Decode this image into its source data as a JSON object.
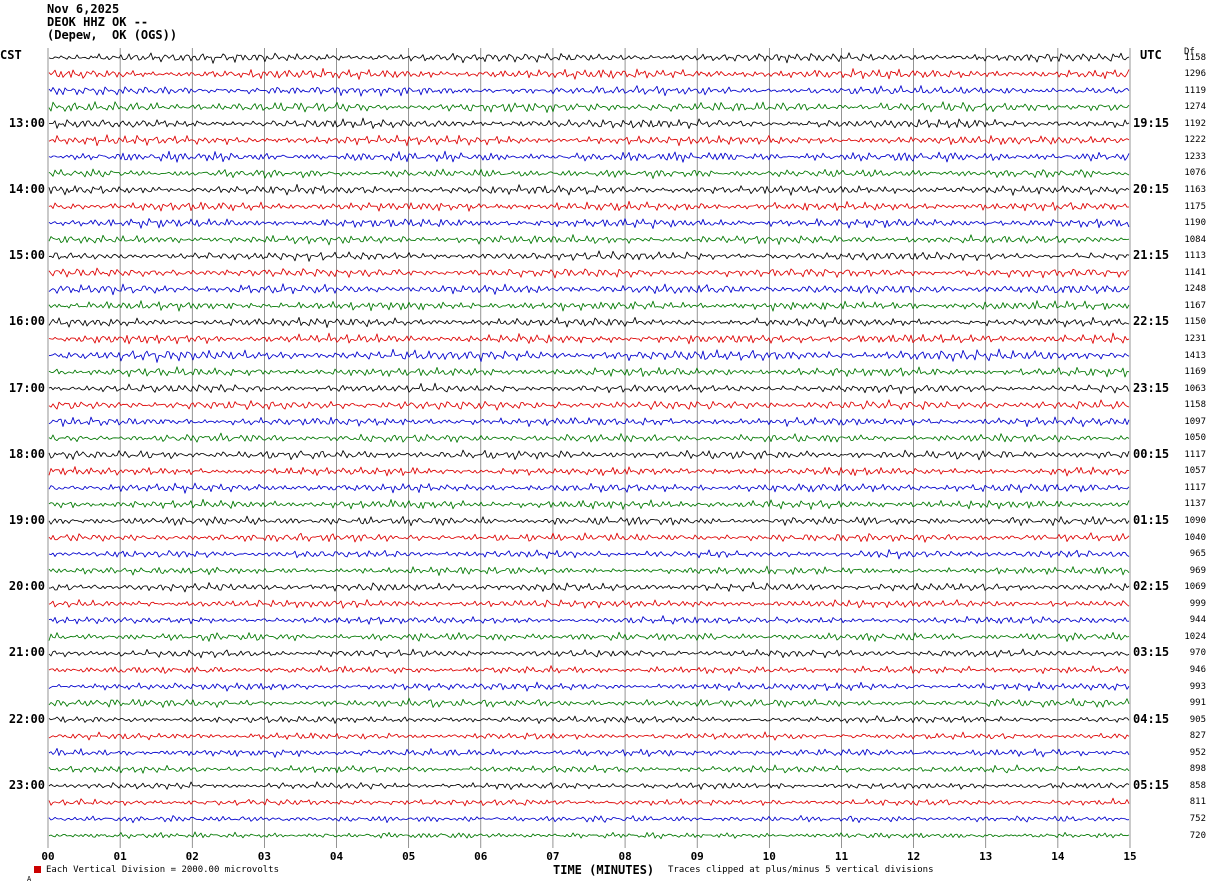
{
  "header": {
    "date": "Nov 6,2025",
    "station": "DEOK HHZ OK --",
    "location": "(Depew,  OK (OGS))"
  },
  "axes": {
    "left_tz": "CST",
    "right_tz": "UTC",
    "right_col_header": "Df",
    "xlabel": "TIME (MINUTES)",
    "x_ticks": [
      "00",
      "01",
      "02",
      "03",
      "04",
      "05",
      "06",
      "07",
      "08",
      "09",
      "10",
      "11",
      "12",
      "13",
      "14",
      "15"
    ]
  },
  "footer": {
    "scale_note": "Each Vertical Division = 2000.00 microvolts",
    "clip_note": "Traces clipped at plus/minus 5 vertical divisions",
    "corner_mark": "A"
  },
  "chart_data": {
    "type": "line",
    "title": "DEOK HHZ OK -- (Depew, OK (OGS)) helicorder, Nov 6,2025",
    "xlabel": "TIME (MINUTES)",
    "x_range_minutes": [
      0,
      15
    ],
    "minutes_per_line": 15,
    "lines_per_hour": 4,
    "grid": "vertical-minute-lines",
    "trace_colors": [
      "#000000",
      "#dd0000",
      "#0000cc",
      "#007700"
    ],
    "left_time_labels": [
      "13:00",
      "14:00",
      "15:00",
      "16:00",
      "17:00",
      "18:00",
      "19:00",
      "20:00",
      "21:00",
      "22:00",
      "23:00"
    ],
    "right_time_labels": [
      "19:15",
      "20:15",
      "21:15",
      "22:15",
      "23:15",
      "00:15",
      "01:15",
      "02:15",
      "03:15",
      "04:15",
      "05:15"
    ],
    "rows": [
      {
        "cst": "",
        "utc": "",
        "value": 1158
      },
      {
        "cst": "",
        "utc": "",
        "value": 1296
      },
      {
        "cst": "",
        "utc": "",
        "value": 1119
      },
      {
        "cst": "",
        "utc": "",
        "value": 1274
      },
      {
        "cst": "13:00",
        "utc": "19:15",
        "value": 1192
      },
      {
        "cst": "",
        "utc": "",
        "value": 1222
      },
      {
        "cst": "",
        "utc": "",
        "value": 1233
      },
      {
        "cst": "",
        "utc": "",
        "value": 1076
      },
      {
        "cst": "14:00",
        "utc": "20:15",
        "value": 1163
      },
      {
        "cst": "",
        "utc": "",
        "value": 1175
      },
      {
        "cst": "",
        "utc": "",
        "value": 1190
      },
      {
        "cst": "",
        "utc": "",
        "value": 1084
      },
      {
        "cst": "15:00",
        "utc": "21:15",
        "value": 1113
      },
      {
        "cst": "",
        "utc": "",
        "value": 1141
      },
      {
        "cst": "",
        "utc": "",
        "value": 1248
      },
      {
        "cst": "",
        "utc": "",
        "value": 1167
      },
      {
        "cst": "16:00",
        "utc": "22:15",
        "value": 1150
      },
      {
        "cst": "",
        "utc": "",
        "value": 1231
      },
      {
        "cst": "",
        "utc": "",
        "value": 1413
      },
      {
        "cst": "",
        "utc": "",
        "value": 1169
      },
      {
        "cst": "17:00",
        "utc": "23:15",
        "value": 1063
      },
      {
        "cst": "",
        "utc": "",
        "value": 1158
      },
      {
        "cst": "",
        "utc": "",
        "value": 1097
      },
      {
        "cst": "",
        "utc": "",
        "value": 1050
      },
      {
        "cst": "18:00",
        "utc": "00:15",
        "value": 1117
      },
      {
        "cst": "",
        "utc": "",
        "value": 1057
      },
      {
        "cst": "",
        "utc": "",
        "value": 1117
      },
      {
        "cst": "",
        "utc": "",
        "value": 1137
      },
      {
        "cst": "19:00",
        "utc": "01:15",
        "value": 1090
      },
      {
        "cst": "",
        "utc": "",
        "value": 1040
      },
      {
        "cst": "",
        "utc": "",
        "value": 965
      },
      {
        "cst": "",
        "utc": "",
        "value": 969
      },
      {
        "cst": "20:00",
        "utc": "02:15",
        "value": 1069
      },
      {
        "cst": "",
        "utc": "",
        "value": 999
      },
      {
        "cst": "",
        "utc": "",
        "value": 944
      },
      {
        "cst": "",
        "utc": "",
        "value": 1024
      },
      {
        "cst": "21:00",
        "utc": "03:15",
        "value": 970
      },
      {
        "cst": "",
        "utc": "",
        "value": 946
      },
      {
        "cst": "",
        "utc": "",
        "value": 993
      },
      {
        "cst": "",
        "utc": "",
        "value": 991
      },
      {
        "cst": "22:00",
        "utc": "04:15",
        "value": 905
      },
      {
        "cst": "",
        "utc": "",
        "value": 827
      },
      {
        "cst": "",
        "utc": "",
        "value": 952
      },
      {
        "cst": "",
        "utc": "",
        "value": 898
      },
      {
        "cst": "23:00",
        "utc": "05:15",
        "value": 858
      },
      {
        "cst": "",
        "utc": "",
        "value": 811
      },
      {
        "cst": "",
        "utc": "",
        "value": 752
      },
      {
        "cst": "",
        "utc": "",
        "value": 720
      }
    ]
  }
}
